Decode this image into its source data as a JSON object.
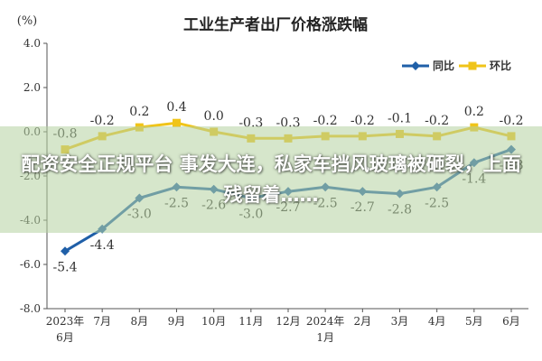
{
  "banner": {
    "headline": "配资安全正规平台 事发大连，私家车挡风玻璃被砸裂，上面残留着……"
  },
  "chart_data": {
    "type": "line",
    "title": "工业生产者出厂价格涨跌幅",
    "unit_label": "(%)",
    "categories": [
      "2023年6月",
      "7月",
      "8月",
      "9月",
      "10月",
      "11月",
      "12月",
      "2024年1月",
      "2月",
      "3月",
      "4月",
      "5月",
      "6月"
    ],
    "category_lines": [
      [
        "2023年",
        "6月"
      ],
      [
        "7月"
      ],
      [
        "8月"
      ],
      [
        "9月"
      ],
      [
        "10月"
      ],
      [
        "11月"
      ],
      [
        "12月"
      ],
      [
        "2024年",
        "1月"
      ],
      [
        "2月"
      ],
      [
        "3月"
      ],
      [
        "4月"
      ],
      [
        "5月"
      ],
      [
        "6月"
      ]
    ],
    "ylim": [
      -8.0,
      4.0
    ],
    "yticks": [
      "4.0",
      "2.0",
      "0.0",
      "-2.0",
      "-4.0",
      "-6.0",
      "-8.0"
    ],
    "ytick_values": [
      4,
      2,
      0,
      -2,
      -4,
      -6,
      -8
    ],
    "grid": false,
    "legend_position": "top-right",
    "series": [
      {
        "name": "同比",
        "color": "#1f5fa8",
        "values": [
          -5.4,
          -4.4,
          -3.0,
          -2.5,
          -2.6,
          -3.0,
          -2.7,
          -2.5,
          -2.7,
          -2.8,
          -2.5,
          -1.4,
          -0.8
        ],
        "labels": [
          "-5.4",
          "-4.4",
          "-3.0",
          "-2.5",
          "-2.6",
          "-3.0",
          "-2.7",
          "-2.5",
          "-2.7",
          "-2.8",
          "-2.5",
          "-1.4",
          "-0.8"
        ]
      },
      {
        "name": "环比",
        "color": "#f0c419",
        "values": [
          -0.8,
          -0.2,
          0.2,
          0.4,
          0.0,
          -0.3,
          -0.3,
          -0.2,
          -0.2,
          -0.1,
          -0.2,
          0.2,
          -0.2
        ],
        "labels": [
          "-0.8",
          "-0.2",
          "0.2",
          "0.4",
          "0.0",
          "-0.3",
          "-0.3",
          "-0.2",
          "-0.2",
          "-0.1",
          "-0.2",
          "0.2",
          "-0.2"
        ]
      }
    ]
  }
}
